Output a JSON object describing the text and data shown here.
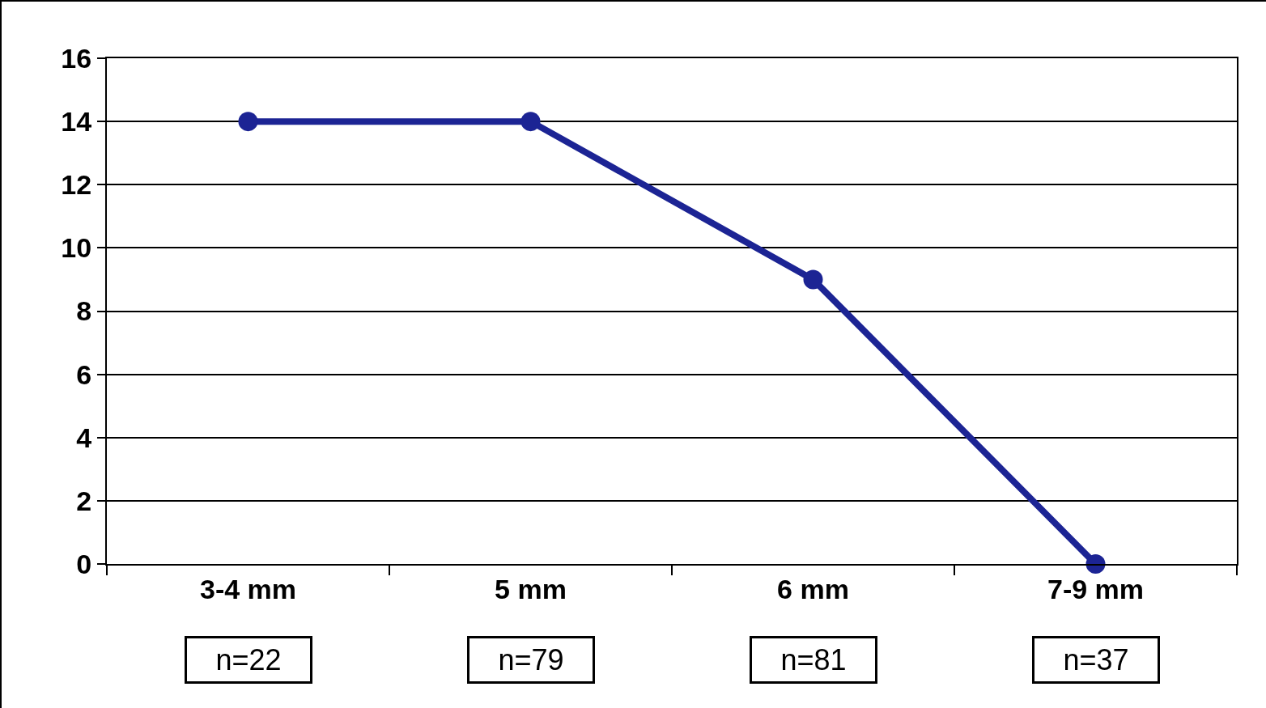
{
  "chart_data": {
    "type": "line",
    "categories": [
      "3-4 mm",
      "5 mm",
      "6 mm",
      "7-9 mm"
    ],
    "series": [
      {
        "color": "#1c2494",
        "values": [
          14,
          14,
          9,
          0
        ]
      }
    ],
    "ylim": [
      0,
      16
    ],
    "yticks": [
      0,
      2,
      4,
      6,
      8,
      10,
      12,
      14,
      16
    ],
    "grid": "y",
    "marker": "circle",
    "line_style": "solid",
    "annotations": [
      "n=22",
      "n=79",
      "n=81",
      "n=37"
    ]
  }
}
